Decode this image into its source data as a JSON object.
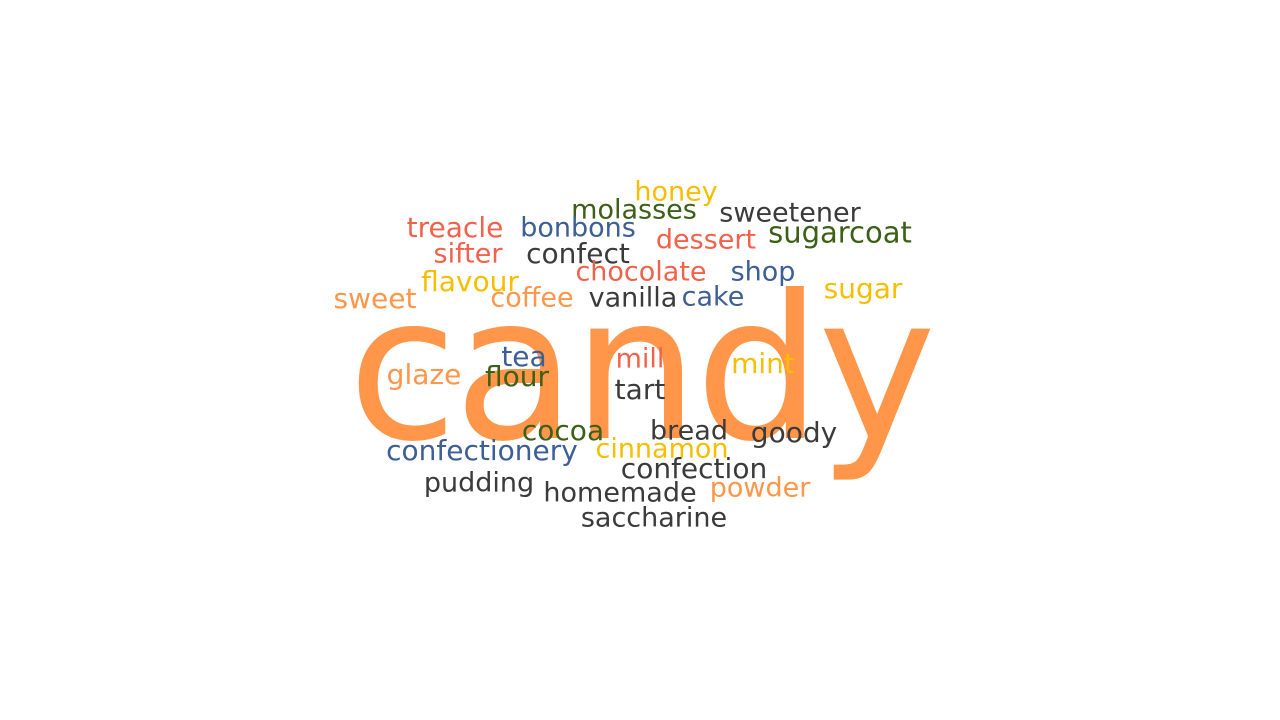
{
  "main_word": {
    "text": "candy",
    "color": "#FF964A"
  },
  "palette": {
    "orange": "#FF964A",
    "red": "#F2624B",
    "yellow": "#F7BE00",
    "blue": "#3D5F96",
    "green": "#3C6016",
    "dark": "#3B3B3B"
  },
  "words": [
    {
      "text": "honey",
      "color": "#F7BE00"
    },
    {
      "text": "molasses",
      "color": "#3C6016"
    },
    {
      "text": "sweetener",
      "color": "#3B3B3B"
    },
    {
      "text": "treacle",
      "color": "#F2624B"
    },
    {
      "text": "bonbons",
      "color": "#3D5F96"
    },
    {
      "text": "dessert",
      "color": "#F2624B"
    },
    {
      "text": "sugarcoat",
      "color": "#3C6016"
    },
    {
      "text": "sifter",
      "color": "#F2624B"
    },
    {
      "text": "confect",
      "color": "#3B3B3B"
    },
    {
      "text": "flavour",
      "color": "#F7BE00"
    },
    {
      "text": "chocolate",
      "color": "#F2624B"
    },
    {
      "text": "shop",
      "color": "#3D5F96"
    },
    {
      "text": "sweet",
      "color": "#FF964A"
    },
    {
      "text": "coffee",
      "color": "#FF964A"
    },
    {
      "text": "vanilla",
      "color": "#3B3B3B"
    },
    {
      "text": "cake",
      "color": "#3D5F96"
    },
    {
      "text": "sugar",
      "color": "#F7BE00"
    },
    {
      "text": "tea",
      "color": "#3D5F96"
    },
    {
      "text": "mill",
      "color": "#F2624B"
    },
    {
      "text": "mint",
      "color": "#F7BE00"
    },
    {
      "text": "glaze",
      "color": "#FF964A"
    },
    {
      "text": "flour",
      "color": "#3C6016"
    },
    {
      "text": "tart",
      "color": "#3B3B3B"
    },
    {
      "text": "cocoa",
      "color": "#3C6016"
    },
    {
      "text": "bread",
      "color": "#3B3B3B"
    },
    {
      "text": "goody",
      "color": "#3B3B3B"
    },
    {
      "text": "confectionery",
      "color": "#3D5F96"
    },
    {
      "text": "cinnamon",
      "color": "#F7BE00"
    },
    {
      "text": "confection",
      "color": "#3B3B3B"
    },
    {
      "text": "pudding",
      "color": "#3B3B3B"
    },
    {
      "text": "homemade",
      "color": "#3B3B3B"
    },
    {
      "text": "powder",
      "color": "#FF964A"
    },
    {
      "text": "saccharine",
      "color": "#3B3B3B"
    }
  ]
}
